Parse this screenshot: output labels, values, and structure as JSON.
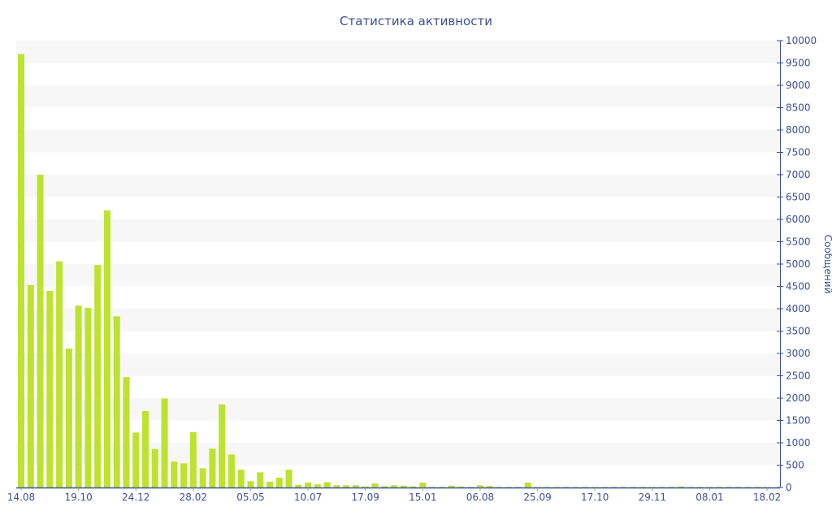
{
  "chart_data": {
    "type": "bar",
    "title": "Статистика активности",
    "xlabel": "",
    "ylabel": "Сообщений",
    "ylim": [
      0,
      10000
    ],
    "ytick_step": 500,
    "xtick_labels": [
      "14.08",
      "19.10",
      "24.12",
      "28.02",
      "05.05",
      "10.07",
      "17.09",
      "15.01",
      "06.08",
      "25.09",
      "17.10",
      "29.11",
      "08.01",
      "18.02"
    ],
    "xtick_every_n_bars": 6,
    "grid": "alternating horizontal bands",
    "legend": "none",
    "colors": {
      "bar": "#bde22f",
      "axis": "#3b4f9a",
      "band": "#f7f7f7"
    },
    "values": [
      9700,
      4530,
      7000,
      4400,
      5060,
      3110,
      4070,
      4020,
      4980,
      6200,
      3830,
      2470,
      1230,
      1710,
      860,
      1990,
      580,
      540,
      1240,
      430,
      870,
      1860,
      740,
      400,
      140,
      340,
      130,
      220,
      400,
      60,
      110,
      70,
      120,
      50,
      50,
      50,
      25,
      90,
      30,
      50,
      40,
      25,
      110,
      15,
      15,
      40,
      20,
      15,
      50,
      35,
      15,
      15,
      15,
      110,
      15,
      15,
      15,
      15,
      15,
      15,
      15,
      15,
      15,
      15,
      15,
      15,
      15,
      15,
      15,
      25,
      15,
      15,
      15,
      15,
      15,
      15,
      15,
      15,
      15
    ]
  }
}
